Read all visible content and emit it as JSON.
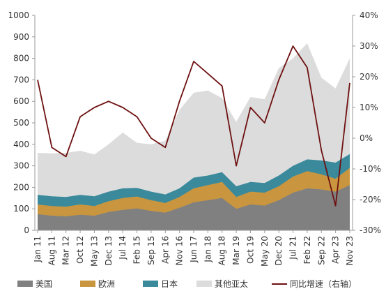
{
  "chart_data": {
    "type": "area",
    "x": [
      "Jan 11",
      "Aug 11",
      "Mar 12",
      "Oct 12",
      "May 13",
      "Dec 13",
      "Jul 14",
      "Feb 15",
      "Sep 15",
      "Apr 16",
      "Nov 16",
      "Jun 17",
      "Jan 18",
      "Aug 18",
      "Mar 19",
      "Oct 19",
      "May 20",
      "Dec 20",
      "Jul 21",
      "Feb 22",
      "Sep 22",
      "Apr 23",
      "Nov 23"
    ],
    "ylim_left": [
      0,
      1000
    ],
    "yticks_left": [
      "0",
      "100",
      "200",
      "300",
      "400",
      "500",
      "600",
      "700",
      "800",
      "900",
      "1000"
    ],
    "ylim_right": [
      -30,
      40
    ],
    "yticks_right": [
      "-30%",
      "-20%",
      "-10%",
      "0%",
      "10%",
      "20%",
      "30%",
      "40%"
    ],
    "series": [
      {
        "name": "美国",
        "type": "stacked-area",
        "color": "#808080",
        "values": [
          75,
          68,
          65,
          72,
          68,
          85,
          95,
          102,
          90,
          82,
          105,
          130,
          140,
          150,
          100,
          120,
          115,
          140,
          175,
          195,
          190,
          180,
          210
        ]
      },
      {
        "name": "欧洲",
        "type": "stacked-area",
        "color": "#C9963F",
        "values": [
          45,
          45,
          45,
          48,
          45,
          50,
          55,
          55,
          50,
          45,
          50,
          65,
          70,
          75,
          55,
          60,
          60,
          65,
          75,
          80,
          70,
          60,
          80
        ]
      },
      {
        "name": "日本",
        "type": "stacked-area",
        "color": "#3A8A9C",
        "values": [
          45,
          45,
          45,
          45,
          45,
          45,
          45,
          40,
          40,
          40,
          40,
          50,
          45,
          45,
          50,
          45,
          45,
          50,
          50,
          55,
          65,
          75,
          65
        ]
      },
      {
        "name": "其他亚太",
        "type": "stacked-area",
        "color": "#DCDCDC",
        "values": [
          195,
          200,
          205,
          205,
          195,
          220,
          260,
          210,
          220,
          250,
          365,
          395,
          395,
          345,
          300,
          395,
          390,
          500,
          500,
          540,
          385,
          345,
          445
        ]
      },
      {
        "name": "同比增速（右轴）",
        "type": "line",
        "axis": "right",
        "color": "#6E1010",
        "values": [
          19,
          -3,
          -6,
          7,
          10,
          12,
          10,
          7,
          0,
          -3,
          12,
          25,
          21,
          17,
          -9,
          10,
          5,
          19,
          30,
          23,
          -4,
          -22,
          18
        ]
      }
    ]
  }
}
